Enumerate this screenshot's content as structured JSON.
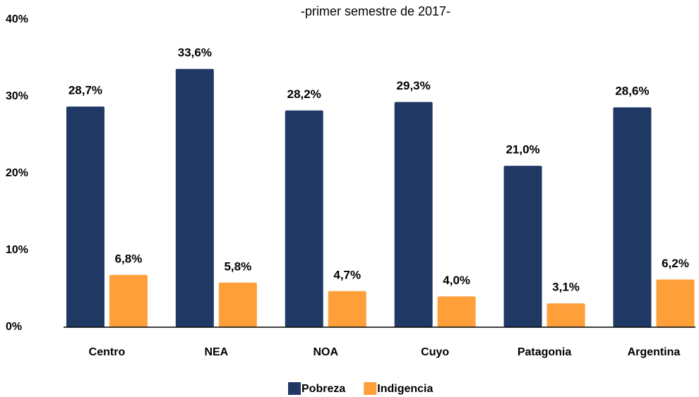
{
  "chart_data": {
    "type": "bar",
    "subtitle": "-primer semestre de 2017-",
    "categories": [
      "Centro",
      "NEA",
      "NOA",
      "Cuyo",
      "Patagonia",
      "Argentina"
    ],
    "series": [
      {
        "name": "Pobreza",
        "color": "#203864",
        "values": [
          28.7,
          33.6,
          28.2,
          29.3,
          21.0,
          28.6
        ],
        "value_labels": [
          "28,7%",
          "33,6%",
          "28,2%",
          "29,3%",
          "21,0%",
          "28,6%"
        ]
      },
      {
        "name": "Indigencia",
        "color": "#ff9f3a",
        "values": [
          6.8,
          5.8,
          4.7,
          4.0,
          3.1,
          6.2
        ],
        "value_labels": [
          "6,8%",
          "5,8%",
          "4,7%",
          "4,0%",
          "3,1%",
          "6,2%"
        ]
      }
    ],
    "ylim": [
      0,
      40
    ],
    "yticks": [
      {
        "value": 0,
        "label": "0%"
      },
      {
        "value": 10,
        "label": "10%"
      },
      {
        "value": 20,
        "label": "20%"
      },
      {
        "value": 30,
        "label": "30%"
      },
      {
        "value": 40,
        "label": "40%"
      }
    ],
    "legend": "bottom"
  }
}
